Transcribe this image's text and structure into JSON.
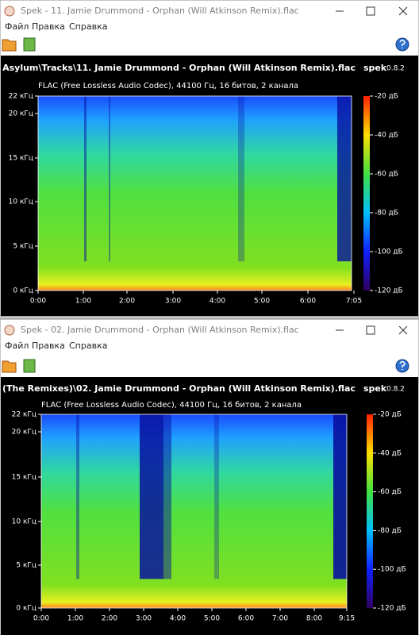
{
  "windows": [
    {
      "title": "Spek - 11. Jamie Drummond - Orphan (Will Atkinson Remix).flac",
      "menu": [
        "Файл",
        "Правка",
        "Справка"
      ],
      "header": {
        "path": "... Asylum\\Tracks\\11. Jamie Drummond - Orphan (Will Atkinson Remix).flac",
        "app": "spek",
        "version": "0.8.2"
      },
      "info": "FLAC (Free Lossless Audio Codec), 44100 Гц, 16 битов, 2 канала",
      "y_ticks": [
        "22 кГц",
        "20 кГц",
        "15 кГц",
        "10 кГц",
        "5 кГц",
        "0 кГц"
      ],
      "x_ticks": [
        "0:00",
        "1:00",
        "2:00",
        "3:00",
        "4:00",
        "5:00",
        "6:00",
        "7:05"
      ],
      "db_ticks": [
        "-20 дБ",
        "-40 дБ",
        "-60 дБ",
        "-80 дБ",
        "-100 дБ",
        "-120 дБ"
      ]
    },
    {
      "title": "Spek - 02. Jamie Drummond - Orphan (Will Atkinson Remix).flac",
      "menu": [
        "Файл",
        "Правка",
        "Справка"
      ],
      "header": {
        "path": "... (The Remixes)\\02. Jamie Drummond - Orphan (Will Atkinson Remix).flac",
        "app": "spek",
        "version": "0.8.2"
      },
      "info": "FLAC (Free Lossless Audio Codec), 44100 Гц, 16 битов, 2 канала",
      "y_ticks": [
        "22 кГц",
        "20 кГц",
        "15 кГц",
        "10 кГц",
        "5 кГц",
        "0 кГц"
      ],
      "x_ticks": [
        "0:00",
        "1:00",
        "2:00",
        "3:00",
        "4:00",
        "5:00",
        "6:00",
        "7:00",
        "8:00",
        "9:15"
      ],
      "db_ticks": [
        "-20 дБ",
        "-40 дБ",
        "-60 дБ",
        "-80 дБ",
        "-100 дБ",
        "-120 дБ"
      ]
    }
  ]
}
